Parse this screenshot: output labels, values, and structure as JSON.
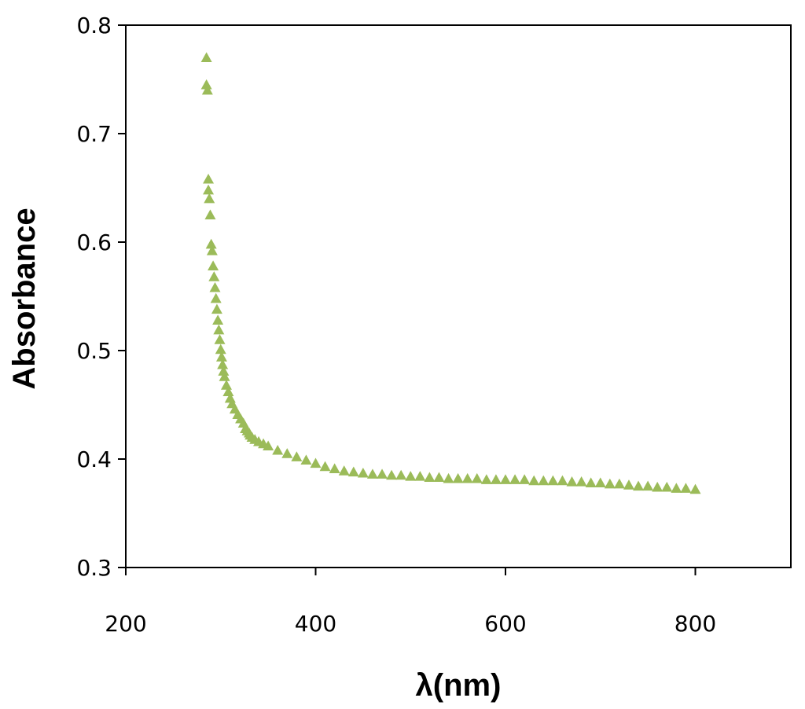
{
  "chart_data": {
    "type": "scatter",
    "title": "",
    "xlabel": "λ(nm)",
    "ylabel": "Absorbance",
    "xlim": [
      200,
      900
    ],
    "ylim": [
      0.3,
      0.8
    ],
    "xticks": [
      "200",
      "400",
      "600",
      "800"
    ],
    "yticks": [
      "0.3",
      "0.4",
      "0.5",
      "0.6",
      "0.7",
      "0.8"
    ],
    "grid": false,
    "legend": "none",
    "marker": "triangle",
    "color": "#9bbb59",
    "series": [
      {
        "x": [
          285,
          285,
          286,
          287,
          287,
          288,
          289,
          290,
          291,
          292,
          293,
          294,
          295,
          296,
          297,
          298,
          299,
          300,
          301,
          302,
          303,
          304,
          306,
          308,
          310,
          312,
          315,
          318,
          321,
          324,
          326,
          328,
          330,
          331,
          333,
          336,
          340,
          345,
          350,
          360,
          370,
          380,
          390,
          400,
          410,
          420,
          430,
          440,
          450,
          460,
          470,
          480,
          490,
          500,
          510,
          520,
          530,
          540,
          550,
          560,
          570,
          580,
          590,
          600,
          610,
          620,
          630,
          640,
          650,
          660,
          670,
          680,
          690,
          700,
          710,
          720,
          730,
          740,
          750,
          760,
          770,
          780,
          790,
          800
        ],
        "y": [
          0.77,
          0.745,
          0.74,
          0.658,
          0.648,
          0.64,
          0.625,
          0.598,
          0.592,
          0.578,
          0.568,
          0.558,
          0.548,
          0.538,
          0.528,
          0.519,
          0.51,
          0.501,
          0.494,
          0.487,
          0.481,
          0.476,
          0.468,
          0.462,
          0.456,
          0.451,
          0.446,
          0.441,
          0.437,
          0.433,
          0.428,
          0.426,
          0.424,
          0.422,
          0.42,
          0.418,
          0.416,
          0.414,
          0.412,
          0.408,
          0.405,
          0.402,
          0.399,
          0.396,
          0.393,
          0.391,
          0.389,
          0.388,
          0.387,
          0.386,
          0.386,
          0.385,
          0.385,
          0.384,
          0.384,
          0.383,
          0.383,
          0.382,
          0.382,
          0.382,
          0.382,
          0.381,
          0.381,
          0.381,
          0.381,
          0.381,
          0.38,
          0.38,
          0.38,
          0.38,
          0.379,
          0.379,
          0.378,
          0.378,
          0.377,
          0.377,
          0.376,
          0.375,
          0.375,
          0.374,
          0.374,
          0.373,
          0.373,
          0.372
        ]
      }
    ]
  }
}
